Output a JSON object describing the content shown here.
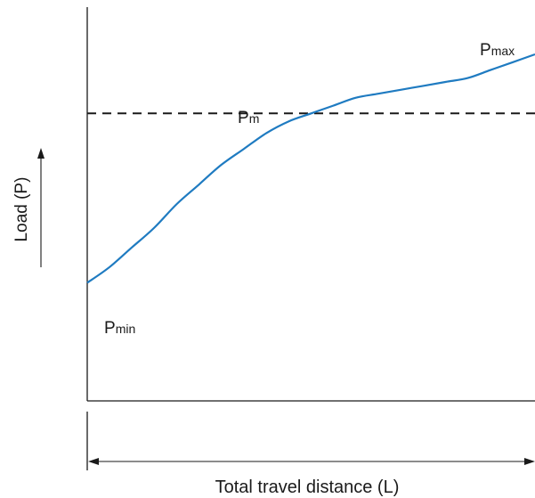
{
  "chart_data": {
    "type": "line",
    "title": "",
    "xlabel": "Total travel distance (L)",
    "ylabel": "Load (P)",
    "series": [
      {
        "color": "#1f7bc1",
        "x": [
          0,
          0.05,
          0.1,
          0.15,
          0.2,
          0.25,
          0.3,
          0.35,
          0.4,
          0.45,
          0.5,
          0.55,
          0.6,
          0.65,
          0.7,
          0.75,
          0.8,
          0.85,
          0.9,
          0.95,
          1.0
        ],
        "y": [
          0.3,
          0.34,
          0.39,
          0.44,
          0.5,
          0.55,
          0.6,
          0.64,
          0.68,
          0.71,
          0.73,
          0.75,
          0.77,
          0.78,
          0.79,
          0.8,
          0.81,
          0.82,
          0.84,
          0.86,
          0.88
        ]
      }
    ],
    "reference_line": {
      "label_main": "P",
      "label_sub": "m",
      "y": 0.73,
      "style": "dashed"
    },
    "annotations": [
      {
        "id": "pmax",
        "main": "P",
        "sub": "max"
      },
      {
        "id": "pmin",
        "main": "P",
        "sub": "min"
      }
    ],
    "grid": false,
    "legend": "none"
  }
}
